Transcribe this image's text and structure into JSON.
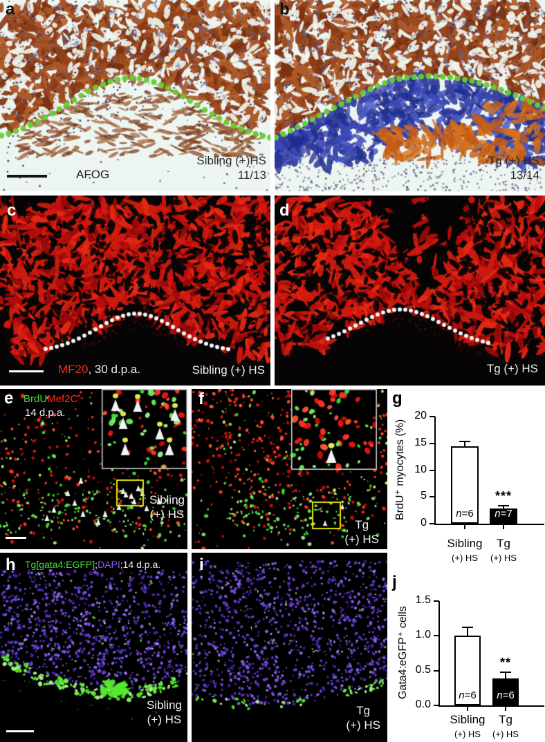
{
  "figure": {
    "panels": {
      "a": {
        "label": "a",
        "stain": "AFOG",
        "group": "Sibling (+)HS",
        "ratio": "11/13"
      },
      "b": {
        "label": "b",
        "group": "Tg (+) HS",
        "ratio": "13/14"
      },
      "c": {
        "label": "c",
        "marker": "MF20",
        "marker_suffix": ", 30 d.p.a.",
        "group": "Sibling (+) HS"
      },
      "d": {
        "label": "d",
        "group": "Tg (+) HS"
      },
      "e": {
        "label": "e",
        "marker_green": "BrdU",
        "marker_red": "Mef2C",
        "timepoint": "14 d.p.a.",
        "group_line1": "Sibling",
        "group_line2": "(+) HS"
      },
      "f": {
        "label": "f",
        "group_line1": "Tg",
        "group_line2": "(+) HS"
      },
      "g": {
        "label": "g"
      },
      "h": {
        "label": "h",
        "marker_green": "Tg[gata4:EGFP]",
        "sep": ";",
        "marker_purple": "DAPI",
        "timepoint": ";14 d.p.a.",
        "group_line1": "Sibling",
        "group_line2": "(+) HS"
      },
      "i": {
        "label": "i",
        "group_line1": "Tg",
        "group_line2": "(+) HS"
      },
      "j": {
        "label": "j"
      }
    },
    "colors": {
      "dotted_line_green": "#67cd31",
      "dotted_line_white": "#ffffff",
      "mf20_red": "#e83020",
      "brdu_green": "#41e02e",
      "mef2c_red": "#ff2d1a",
      "egfp_green": "#41e02e",
      "dapi_purple": "#8a5cf0",
      "afog_fibrin_blue": "#2f3ca3",
      "afog_muscle_brown": "#9c4a1e"
    }
  },
  "chart_data": [
    {
      "id": "g",
      "type": "bar",
      "title": "",
      "ylabel": "BrdU⁺ myocytes (%)",
      "xlabel": "",
      "categories": [
        [
          "Sibling",
          "(+) HS"
        ],
        [
          "Tg",
          "(+) HS"
        ]
      ],
      "values": [
        14.5,
        2.8
      ],
      "errors": [
        0.9,
        0.5
      ],
      "n_labels": [
        "n=6",
        "n=7"
      ],
      "significance": {
        "label": "***",
        "bar_index": 1
      },
      "ylim": [
        0,
        20
      ],
      "yticks": [
        "0",
        "5",
        "10",
        "15",
        "20"
      ],
      "bar_fill": [
        "#ffffff",
        "#000000"
      ],
      "bar_text": [
        "#000000",
        "#ffffff"
      ],
      "grid": false,
      "legend": false
    },
    {
      "id": "j",
      "type": "bar",
      "title": "",
      "ylabel": "Gata4:eGFP⁺ cells",
      "xlabel": "",
      "categories": [
        [
          "Sibling",
          "(+) HS"
        ],
        [
          "Tg",
          "(+) HS"
        ]
      ],
      "values": [
        1.0,
        0.39
      ],
      "errors": [
        0.12,
        0.09
      ],
      "n_labels": [
        "n=6",
        "n=6"
      ],
      "significance": {
        "label": "**",
        "bar_index": 1
      },
      "ylim": [
        0,
        1.5
      ],
      "yticks": [
        "0.0",
        "0.5",
        "1.0",
        "1.5"
      ],
      "bar_fill": [
        "#ffffff",
        "#000000"
      ],
      "bar_text": [
        "#000000",
        "#ffffff"
      ],
      "grid": false,
      "legend": false
    }
  ]
}
